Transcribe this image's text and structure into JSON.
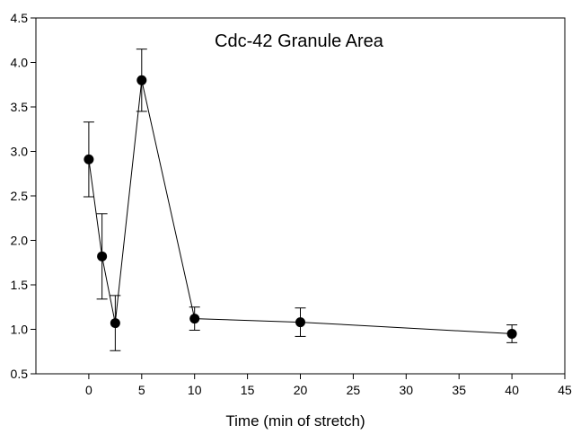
{
  "chart_data": {
    "type": "line",
    "title": "Cdc-42 Granule Area",
    "xlabel": "Time (min  of stretch)",
    "ylabel": "",
    "xlim": [
      -5,
      45
    ],
    "ylim": [
      0.5,
      4.5
    ],
    "x_ticks": [
      0,
      5,
      10,
      15,
      20,
      25,
      30,
      35,
      40,
      45
    ],
    "x_tick_labels": [
      "0",
      "5",
      "10",
      "15",
      "20",
      "25",
      "30",
      "35",
      "40",
      "45"
    ],
    "y_ticks": [
      0.5,
      1.0,
      1.5,
      2.0,
      2.5,
      3.0,
      3.5,
      4.0,
      4.5
    ],
    "y_tick_labels": [
      "0.5",
      "1.0",
      "1.5",
      "2.0",
      "2.5",
      "3.0",
      "3.5",
      "4.0",
      "4.5"
    ],
    "grid": false,
    "legend": "none",
    "series": [
      {
        "color": "#000000",
        "marker": "filled-circle",
        "x": [
          0,
          1.25,
          2.5,
          5,
          10,
          20,
          40
        ],
        "y": [
          2.91,
          1.82,
          1.07,
          3.8,
          1.12,
          1.08,
          0.95
        ],
        "error": [
          0.42,
          0.48,
          0.31,
          0.35,
          0.13,
          0.16,
          0.1
        ]
      }
    ]
  }
}
